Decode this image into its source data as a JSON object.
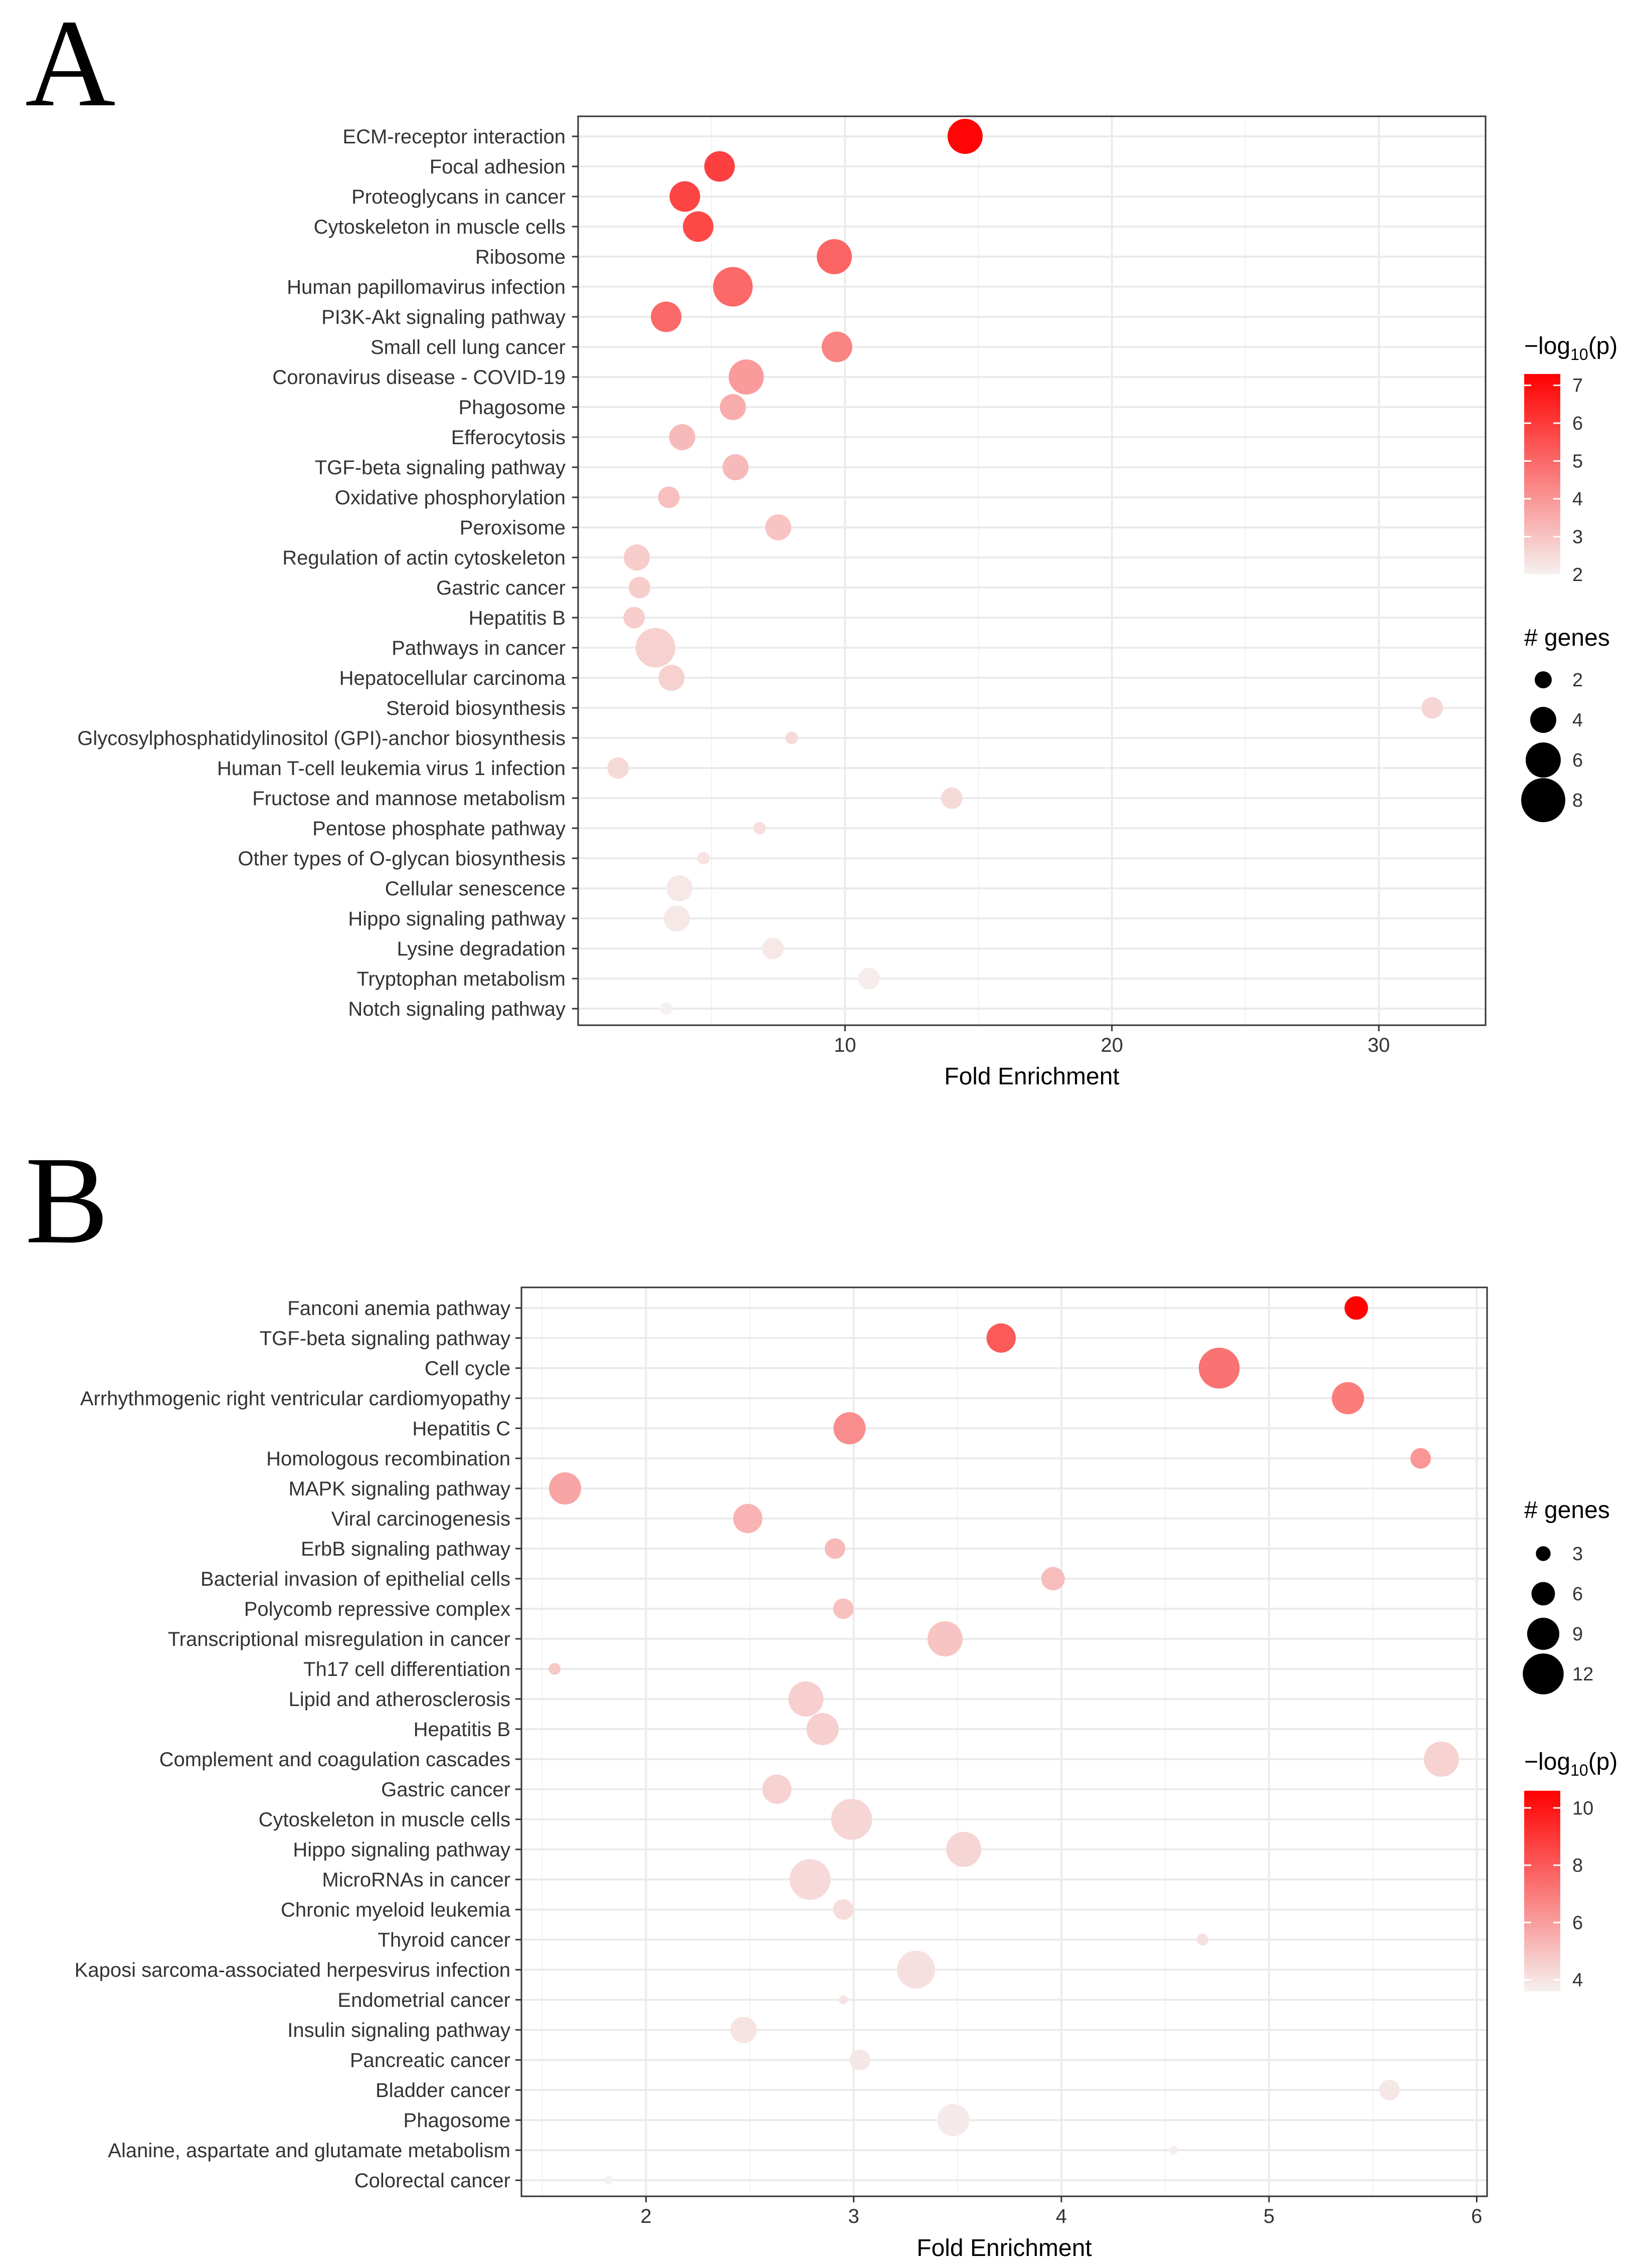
{
  "chart_data": [
    {
      "type": "scatter",
      "panel_label": "A",
      "xlabel": "Fold Enrichment",
      "xlim": [
        0,
        34
      ],
      "xticks": [
        10,
        20,
        30
      ],
      "size_legend_title": "# genes",
      "size_legend_values": [
        2,
        4,
        6,
        8
      ],
      "color_legend_title_prefix": "−log",
      "color_legend_title_sub": "10",
      "color_legend_title_suffix": "(p)",
      "color_range": [
        2,
        7.3
      ],
      "color_ticks": [
        2,
        3,
        4,
        5,
        6,
        7
      ],
      "gridlines": true,
      "categories": [
        "ECM-receptor interaction",
        "Focal adhesion",
        "Proteoglycans in cancer",
        "Cytoskeleton in muscle cells",
        "Ribosome",
        "Human papillomavirus infection",
        "PI3K-Akt signaling pathway",
        "Small cell lung cancer",
        "Coronavirus disease - COVID-19",
        "Phagosome",
        "Efferocytosis",
        "TGF-beta signaling pathway",
        "Oxidative phosphorylation",
        "Peroxisome",
        "Regulation of actin cytoskeleton",
        "Gastric cancer",
        "Hepatitis B",
        "Pathways in cancer",
        "Hepatocellular carcinoma",
        "Steroid biosynthesis",
        "Glycosylphosphatidylinositol (GPI)-anchor biosynthesis",
        "Human T-cell leukemia virus 1 infection",
        "Fructose and mannose metabolism",
        "Pentose phosphate pathway",
        "Other types of O-glycan biosynthesis",
        "Cellular senescence",
        "Hippo signaling pathway",
        "Lysine degradation",
        "Tryptophan metabolism",
        "Notch signaling pathway"
      ],
      "fold_enrichment": [
        14.5,
        5.3,
        4.0,
        4.5,
        9.6,
        5.8,
        3.3,
        9.7,
        6.3,
        5.8,
        3.9,
        5.9,
        3.4,
        7.5,
        2.2,
        2.3,
        2.1,
        2.9,
        3.5,
        32.0,
        8.0,
        1.5,
        14.0,
        6.8,
        4.7,
        3.8,
        3.7,
        7.3,
        10.9,
        3.3
      ],
      "genes": [
        6,
        5,
        5,
        5,
        6,
        7,
        5,
        5,
        6,
        4,
        4,
        4,
        3,
        4,
        4,
        3,
        3,
        7,
        4,
        3,
        1,
        3,
        3,
        1,
        1,
        4,
        4,
        3,
        3,
        1
      ],
      "neg_log10_p": [
        7.2,
        5.9,
        5.8,
        5.7,
        5.1,
        5.0,
        5.0,
        4.4,
        3.9,
        3.5,
        3.2,
        3.2,
        3.1,
        3.0,
        2.8,
        2.8,
        2.8,
        2.7,
        2.7,
        2.6,
        2.5,
        2.5,
        2.5,
        2.4,
        2.3,
        2.2,
        2.2,
        2.2,
        2.1,
        2.0
      ]
    },
    {
      "type": "scatter",
      "panel_label": "B",
      "xlabel": "Fold Enrichment",
      "xlim": [
        1.4,
        6.05
      ],
      "xticks": [
        2,
        3,
        4,
        5,
        6
      ],
      "size_legend_title": "# genes",
      "size_legend_values": [
        3,
        6,
        9,
        12
      ],
      "color_legend_title_prefix": "−log",
      "color_legend_title_sub": "10",
      "color_legend_title_suffix": "(p)",
      "color_range": [
        3.6,
        10.6
      ],
      "color_ticks": [
        4,
        6,
        8,
        10
      ],
      "gridlines": true,
      "categories": [
        "Fanconi anemia pathway",
        "TGF-beta signaling pathway",
        "Cell cycle",
        "Arrhythmogenic right ventricular cardiomyopathy",
        "Hepatitis C",
        "Homologous recombination",
        "MAPK signaling pathway",
        "Viral carcinogenesis",
        "ErbB signaling pathway",
        "Bacterial invasion of epithelial cells",
        "Polycomb repressive complex",
        "Transcriptional misregulation in cancer",
        "Th17 cell differentiation",
        "Lipid and atherosclerosis",
        "Hepatitis B",
        "Complement and coagulation cascades",
        "Gastric cancer",
        "Cytoskeleton in muscle cells",
        "Hippo signaling pathway",
        "MicroRNAs in cancer",
        "Chronic myeloid leukemia",
        "Thyroid cancer",
        "Kaposi sarcoma-associated herpesvirus infection",
        "Endometrial cancer",
        "Insulin signaling pathway",
        "Pancreatic cancer",
        "Bladder cancer",
        "Phagosome",
        "Alanine, aspartate and glutamate metabolism",
        "Colorectal cancer"
      ],
      "fold_enrichment": [
        5.42,
        3.71,
        4.76,
        5.38,
        2.98,
        5.73,
        1.61,
        2.49,
        2.91,
        3.96,
        2.95,
        3.44,
        1.56,
        2.77,
        2.85,
        5.83,
        2.63,
        2.99,
        3.53,
        2.79,
        2.95,
        4.68,
        3.3,
        2.95,
        2.47,
        3.03,
        5.58,
        3.48,
        4.54,
        1.82
      ],
      "genes": [
        6,
        8,
        12,
        9,
        9,
        5,
        9,
        8,
        5,
        6,
        5,
        10,
        2,
        10,
        9,
        10,
        8,
        12,
        10,
        12,
        5,
        2,
        11,
        1,
        7,
        5,
        5,
        9,
        1,
        1
      ],
      "neg_log10_p": [
        10.5,
        8.0,
        7.3,
        7.0,
        6.5,
        6.2,
        5.8,
        5.4,
        5.2,
        5.1,
        5.0,
        4.9,
        4.8,
        4.6,
        4.6,
        4.5,
        4.5,
        4.4,
        4.4,
        4.3,
        4.2,
        4.1,
        4.1,
        4.0,
        4.0,
        3.9,
        3.9,
        3.8,
        3.7,
        3.6
      ]
    }
  ]
}
